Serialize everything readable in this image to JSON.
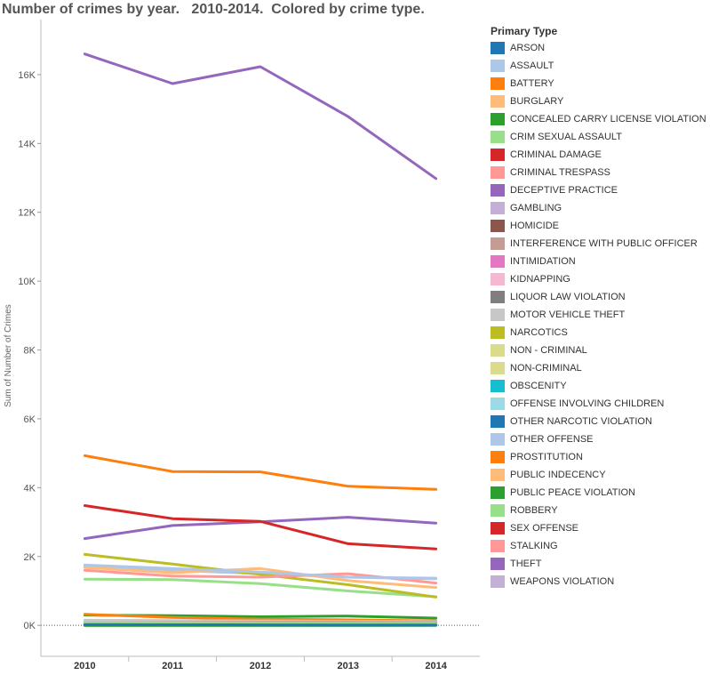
{
  "title": "Number of crimes by year.   2010-2014.  Colored by crime type.",
  "legend": {
    "title": "Primary Type",
    "items": [
      {
        "label": "ARSON",
        "color": "#1f77b4"
      },
      {
        "label": "ASSAULT",
        "color": "#aec7e8"
      },
      {
        "label": "BATTERY",
        "color": "#ff7f0e"
      },
      {
        "label": "BURGLARY",
        "color": "#ffbb78"
      },
      {
        "label": "CONCEALED CARRY LICENSE VIOLATION",
        "color": "#2ca02c"
      },
      {
        "label": "CRIM SEXUAL ASSAULT",
        "color": "#98df8a"
      },
      {
        "label": "CRIMINAL DAMAGE",
        "color": "#d62728"
      },
      {
        "label": "CRIMINAL TRESPASS",
        "color": "#ff9896"
      },
      {
        "label": "DECEPTIVE PRACTICE",
        "color": "#9467bd"
      },
      {
        "label": "GAMBLING",
        "color": "#c5b0d5"
      },
      {
        "label": "HOMICIDE",
        "color": "#8c564b"
      },
      {
        "label": "INTERFERENCE WITH PUBLIC OFFICER",
        "color": "#c49c94"
      },
      {
        "label": "INTIMIDATION",
        "color": "#e377c2"
      },
      {
        "label": "KIDNAPPING",
        "color": "#f7b6d2"
      },
      {
        "label": "LIQUOR LAW VIOLATION",
        "color": "#7f7f7f"
      },
      {
        "label": "MOTOR VEHICLE THEFT",
        "color": "#c7c7c7"
      },
      {
        "label": "NARCOTICS",
        "color": "#bcbd22"
      },
      {
        "label": "NON - CRIMINAL",
        "color": "#dbdb8d"
      },
      {
        "label": "NON-CRIMINAL",
        "color": "#dbdb8d"
      },
      {
        "label": "OBSCENITY",
        "color": "#17becf"
      },
      {
        "label": "OFFENSE INVOLVING CHILDREN",
        "color": "#9edae5"
      },
      {
        "label": "OTHER NARCOTIC VIOLATION",
        "color": "#1f77b4"
      },
      {
        "label": "OTHER OFFENSE",
        "color": "#aec7e8"
      },
      {
        "label": "PROSTITUTION",
        "color": "#ff7f0e"
      },
      {
        "label": "PUBLIC INDECENCY",
        "color": "#ffbb78"
      },
      {
        "label": "PUBLIC PEACE VIOLATION",
        "color": "#2ca02c"
      },
      {
        "label": "ROBBERY",
        "color": "#98df8a"
      },
      {
        "label": "SEX OFFENSE",
        "color": "#d62728"
      },
      {
        "label": "STALKING",
        "color": "#ff9896"
      },
      {
        "label": "THEFT",
        "color": "#9467bd"
      },
      {
        "label": "WEAPONS VIOLATION",
        "color": "#c5b0d5"
      }
    ]
  },
  "chart_data": {
    "type": "line",
    "x": [
      "2010",
      "2011",
      "2012",
      "2013",
      "2014"
    ],
    "ylabel": "Sum of Number of Crimes",
    "xlabel": "",
    "ylim": [
      -900,
      17600
    ],
    "yticks": [
      0,
      2000,
      4000,
      6000,
      8000,
      10000,
      12000,
      14000,
      16000
    ],
    "ytick_labels": [
      "0K",
      "2K",
      "4K",
      "6K",
      "8K",
      "10K",
      "12K",
      "14K",
      "16K"
    ],
    "zero_line": true,
    "series": [
      {
        "name": "ARSON",
        "color": "#1f77b4",
        "values": [
          20,
          18,
          15,
          13,
          12
        ]
      },
      {
        "name": "ASSAULT",
        "color": "#aec7e8",
        "values": [
          1750,
          1650,
          1550,
          1400,
          1350
        ]
      },
      {
        "name": "BATTERY",
        "color": "#ff7f0e",
        "values": [
          4930,
          4470,
          4460,
          4040,
          3950
        ]
      },
      {
        "name": "BURGLARY",
        "color": "#ffbb78",
        "values": [
          1680,
          1530,
          1650,
          1300,
          1100
        ]
      },
      {
        "name": "CONCEALED CARRY LICENSE VIOLATION",
        "color": "#2ca02c",
        "values": [
          0,
          0,
          0,
          0,
          2
        ]
      },
      {
        "name": "CRIM SEXUAL ASSAULT",
        "color": "#98df8a",
        "values": [
          60,
          60,
          55,
          50,
          50
        ]
      },
      {
        "name": "CRIMINAL DAMAGE",
        "color": "#d62728",
        "values": [
          3480,
          3100,
          3020,
          2370,
          2220
        ]
      },
      {
        "name": "CRIMINAL TRESPASS",
        "color": "#ff9896",
        "values": [
          1600,
          1430,
          1400,
          1500,
          1230
        ]
      },
      {
        "name": "DECEPTIVE PRACTICE",
        "color": "#9467bd",
        "values": [
          16600,
          15740,
          16230,
          14780,
          12980
        ]
      },
      {
        "name": "GAMBLING",
        "color": "#c5b0d5",
        "values": [
          10,
          8,
          6,
          4,
          3
        ]
      },
      {
        "name": "HOMICIDE",
        "color": "#8c564b",
        "values": [
          5,
          5,
          6,
          5,
          5
        ]
      },
      {
        "name": "INTERFERENCE WITH PUBLIC OFFICER",
        "color": "#c49c94",
        "values": [
          70,
          80,
          90,
          90,
          80
        ]
      },
      {
        "name": "INTIMIDATION",
        "color": "#e377c2",
        "values": [
          25,
          22,
          20,
          18,
          18
        ]
      },
      {
        "name": "KIDNAPPING",
        "color": "#f7b6d2",
        "values": [
          10,
          10,
          8,
          8,
          8
        ]
      },
      {
        "name": "LIQUOR LAW VIOLATION",
        "color": "#7f7f7f",
        "values": [
          30,
          25,
          20,
          18,
          15
        ]
      },
      {
        "name": "MOTOR VEHICLE THEFT",
        "color": "#c7c7c7",
        "values": [
          150,
          140,
          130,
          120,
          110
        ]
      },
      {
        "name": "NARCOTICS",
        "color": "#bcbd22",
        "values": [
          2060,
          1780,
          1480,
          1180,
          820
        ]
      },
      {
        "name": "NON - CRIMINAL",
        "color": "#dbdb8d",
        "values": [
          0,
          0,
          3,
          5,
          4
        ]
      },
      {
        "name": "NON-CRIMINAL",
        "color": "#dbdb8d",
        "values": [
          0,
          0,
          2,
          3,
          2
        ]
      },
      {
        "name": "OBSCENITY",
        "color": "#17becf",
        "values": [
          5,
          5,
          6,
          6,
          7
        ]
      },
      {
        "name": "OFFENSE INVOLVING CHILDREN",
        "color": "#9edae5",
        "values": [
          120,
          110,
          110,
          100,
          100
        ]
      },
      {
        "name": "OTHER NARCOTIC VIOLATION",
        "color": "#1f77b4",
        "values": [
          2,
          2,
          2,
          2,
          1
        ]
      },
      {
        "name": "OTHER OFFENSE",
        "color": "#aec7e8",
        "values": [
          1700,
          1600,
          1500,
          1400,
          1370
        ]
      },
      {
        "name": "PROSTITUTION",
        "color": "#ff7f0e",
        "values": [
          320,
          230,
          180,
          160,
          130
        ]
      },
      {
        "name": "PUBLIC INDECENCY",
        "color": "#ffbb78",
        "values": [
          15,
          10,
          12,
          10,
          8
        ]
      },
      {
        "name": "PUBLIC PEACE VIOLATION",
        "color": "#2ca02c",
        "values": [
          300,
          280,
          250,
          270,
          210
        ]
      },
      {
        "name": "ROBBERY",
        "color": "#98df8a",
        "values": [
          1340,
          1330,
          1210,
          1000,
          830
        ]
      },
      {
        "name": "SEX OFFENSE",
        "color": "#d62728",
        "values": [
          40,
          40,
          35,
          35,
          30
        ]
      },
      {
        "name": "STALKING",
        "color": "#ff9896",
        "values": [
          20,
          20,
          18,
          20,
          18
        ]
      },
      {
        "name": "THEFT",
        "color": "#9467bd",
        "values": [
          2520,
          2900,
          3010,
          3140,
          2970
        ]
      },
      {
        "name": "WEAPONS VIOLATION",
        "color": "#c5b0d5",
        "values": [
          60,
          60,
          60,
          60,
          60
        ]
      }
    ]
  }
}
